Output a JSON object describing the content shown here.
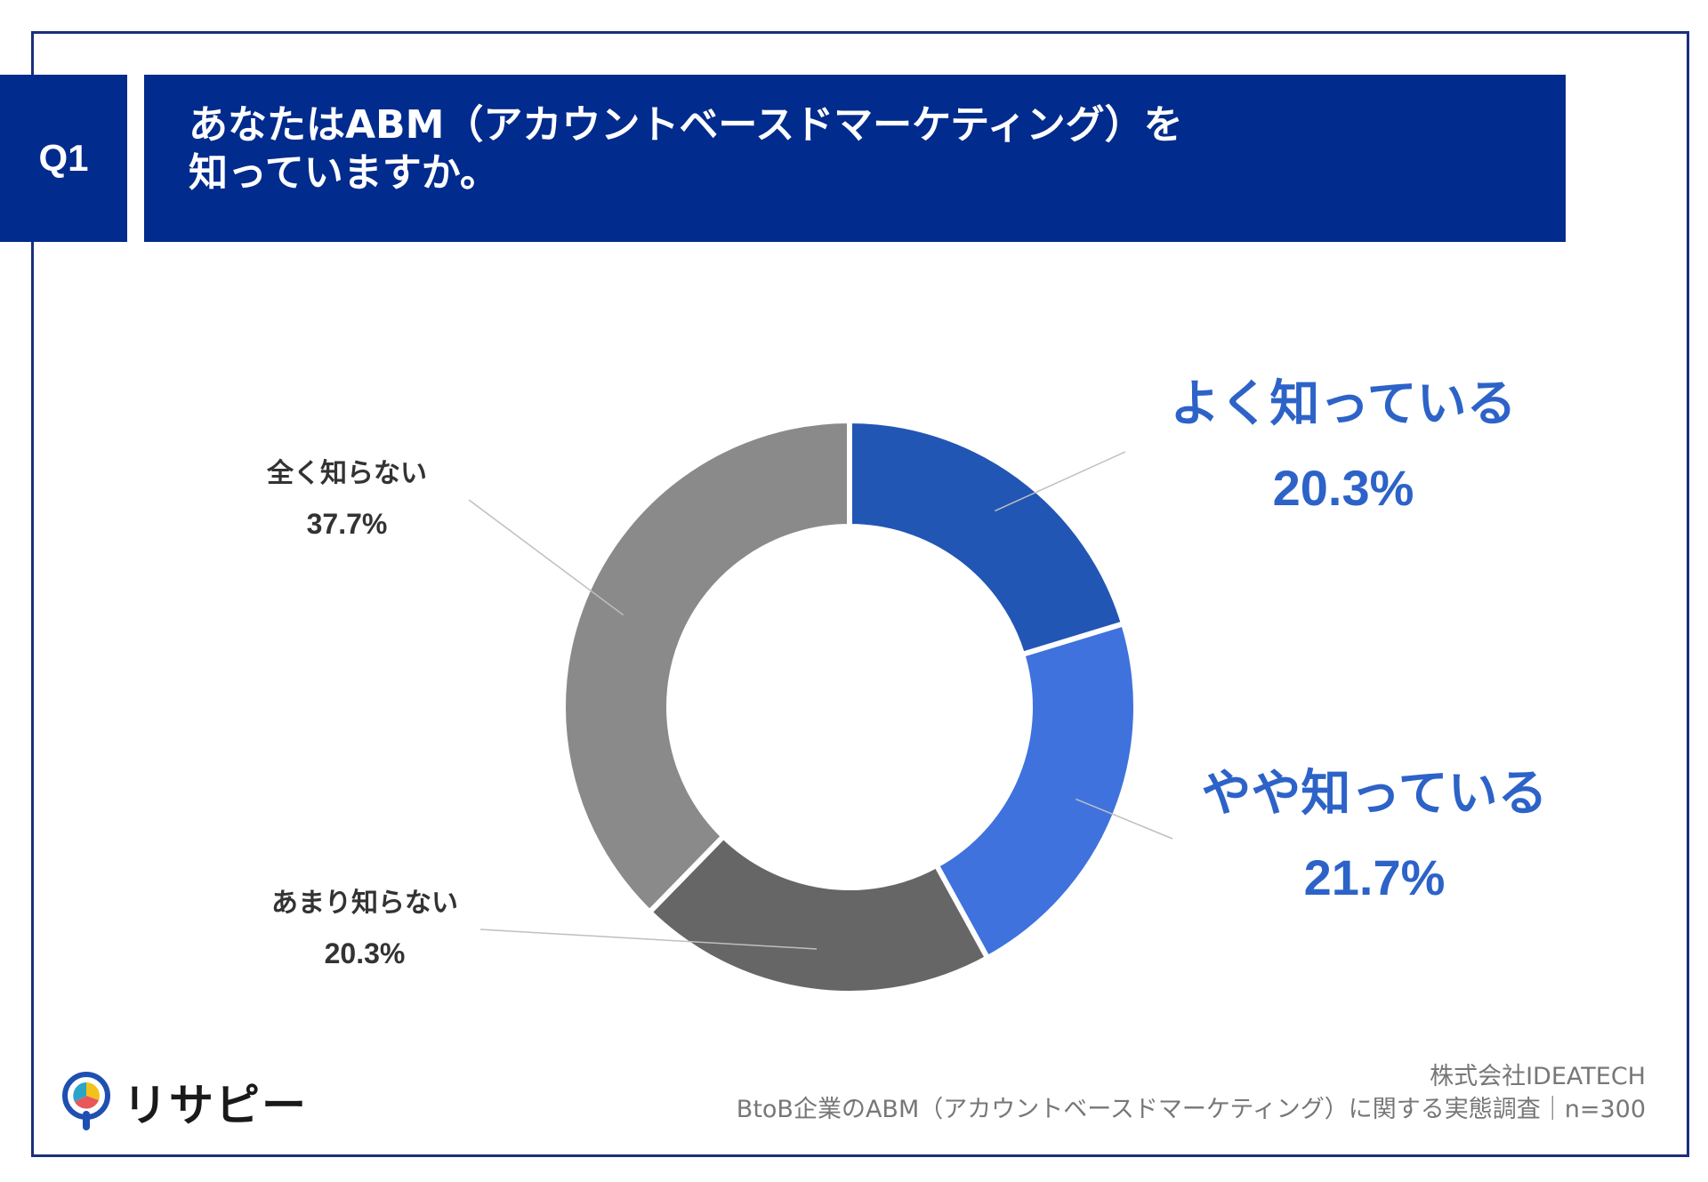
{
  "question": {
    "badge": "Q1",
    "line1": "あなたはABM（アカウントベースドマーケティング）を",
    "line2": "知っていますか。"
  },
  "chart_data": {
    "type": "pie",
    "categories": [
      "よく知っている",
      "やや知っている",
      "あまり知らない",
      "全く知らない"
    ],
    "values": [
      20.3,
      21.7,
      20.3,
      37.7
    ],
    "value_labels": [
      "20.3%",
      "21.7%",
      "20.3%",
      "37.7%"
    ],
    "colors": [
      "#2256b5",
      "#3f72dd",
      "#666666",
      "#8a8a8a"
    ],
    "donut": true,
    "start": "12 o'clock, clockwise",
    "label_colors": [
      "#2d63c8",
      "#2d63c8",
      "#333333",
      "#333333"
    ]
  },
  "branding": {
    "logo_text": "リサピー",
    "logo_icon": "magnifier-pie-icon"
  },
  "source": {
    "company": "株式会社IDEATECH",
    "survey": "BtoB企業のABM（アカウントベースドマーケティング）に関する実態調査｜n=300"
  }
}
